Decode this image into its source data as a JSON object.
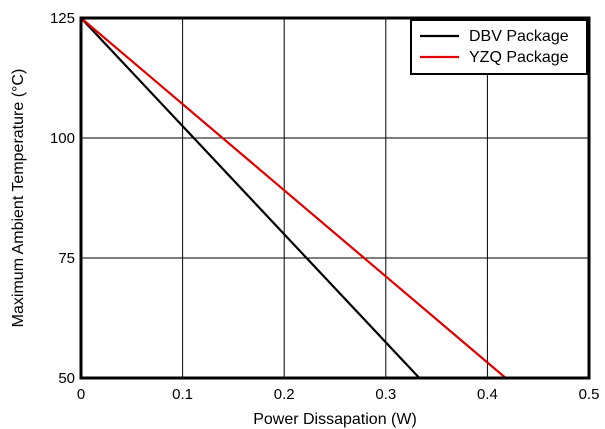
{
  "chart_data": {
    "type": "line",
    "title": "",
    "xlabel": "Power Dissapation (W)",
    "ylabel": "Maximum Ambient Temperature (°C)",
    "xlim": [
      0,
      0.5
    ],
    "ylim": [
      50,
      125
    ],
    "xticks": [
      0,
      0.1,
      0.2,
      0.3,
      0.4,
      0.5
    ],
    "xtick_labels": [
      "0",
      "0.1",
      "0.2",
      "0.3",
      "0.4",
      "0.5"
    ],
    "yticks": [
      50,
      75,
      100,
      125
    ],
    "ytick_labels": [
      "50",
      "75",
      "100",
      "125"
    ],
    "grid": true,
    "legend_position": "top-right",
    "series": [
      {
        "name": "DBV Package",
        "color": "#000000",
        "x": [
          0,
          0.333
        ],
        "y": [
          125,
          50
        ]
      },
      {
        "name": "YZQ Package",
        "color": "#e00000",
        "x": [
          0,
          0.418
        ],
        "y": [
          125,
          50
        ]
      }
    ]
  }
}
